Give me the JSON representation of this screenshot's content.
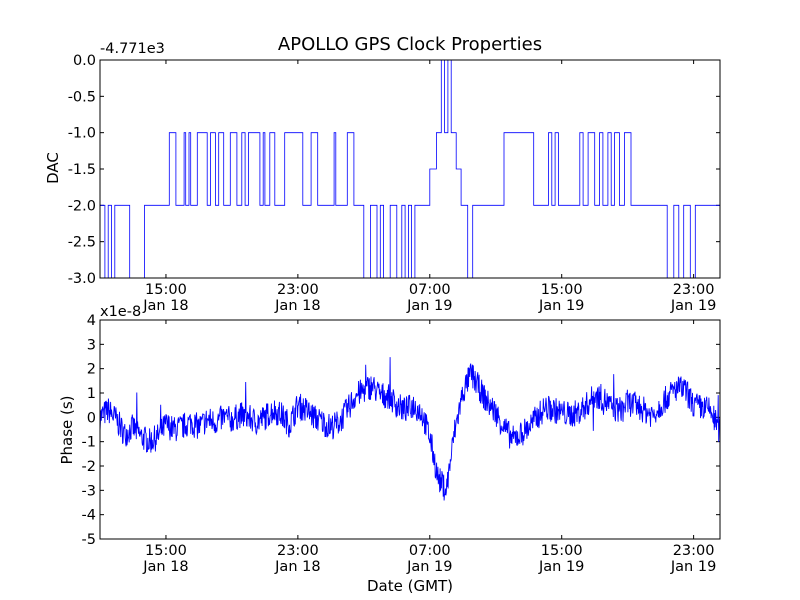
{
  "chart_data": [
    {
      "type": "line",
      "title": "APOLLO GPS Clock Properties",
      "xlabel": "",
      "ylabel": "DAC",
      "offset_text": "-4.771e3",
      "ylim": [
        -3.0,
        0.0
      ],
      "yticks": [
        "0.0",
        "-0.5",
        "-1.0",
        "-1.5",
        "-2.0",
        "-2.5",
        "-3.0"
      ],
      "yticks_values": [
        0.0,
        -0.5,
        -1.0,
        -1.5,
        -2.0,
        -2.5,
        -3.0
      ],
      "xlim_hours": [
        11.0,
        48.6
      ],
      "xticks": [
        {
          "time": "15:00",
          "date": "Jan 18",
          "hour": 15
        },
        {
          "time": "23:00",
          "date": "Jan 18",
          "hour": 23
        },
        {
          "time": "07:00",
          "date": "Jan 19",
          "hour": 31
        },
        {
          "time": "15:00",
          "date": "Jan 19",
          "hour": 39
        },
        {
          "time": "23:00",
          "date": "Jan 19",
          "hour": 47
        }
      ],
      "series": [
        {
          "color": "#0000ff",
          "x_hours": [
            11.0,
            11.3,
            11.5,
            11.7,
            11.9,
            12.5,
            12.8,
            13.7,
            14.0,
            15.0,
            15.2,
            15.5,
            15.6,
            16.1,
            16.2,
            16.4,
            16.5,
            16.7,
            16.9,
            17.3,
            17.5,
            17.7,
            17.9,
            18.0,
            18.2,
            18.5,
            18.9,
            19.3,
            19.6,
            19.8,
            20.0,
            20.5,
            20.7,
            20.9,
            21.0,
            21.3,
            21.6,
            22.0,
            22.2,
            23.0,
            23.3,
            23.8,
            24.2,
            25.0,
            25.2,
            25.3,
            25.6,
            26.0,
            26.4,
            26.7,
            27.0,
            27.4,
            27.8,
            28.0,
            28.2,
            28.6,
            29.0,
            29.3,
            29.5,
            29.7,
            29.9,
            30.1,
            30.5,
            31.0,
            31.4,
            31.7,
            31.9,
            32.1,
            32.3,
            32.5,
            32.6,
            32.9,
            33.3,
            33.6,
            34.2,
            35.0,
            35.5,
            36.2,
            36.9,
            37.3,
            38.0,
            38.2,
            38.4,
            38.6,
            38.8,
            39.2,
            39.5,
            40.1,
            40.3,
            40.6,
            41.0,
            41.3,
            41.5,
            41.8,
            42.0,
            42.2,
            42.5,
            42.8,
            43.2,
            43.6,
            44.0,
            45.0,
            45.4,
            45.8,
            46.1,
            46.4,
            46.8,
            47.1,
            47.5,
            48.2,
            48.6
          ],
          "values": [
            -2.0,
            -3.0,
            -2.0,
            -3.0,
            -2.0,
            -2.0,
            -3.0,
            -2.0,
            -2.0,
            -2.0,
            -1.0,
            -1.0,
            -2.0,
            -1.0,
            -2.0,
            -1.0,
            -2.0,
            -2.0,
            -1.0,
            -1.0,
            -2.0,
            -1.0,
            -1.0,
            -2.0,
            -1.0,
            -2.0,
            -1.0,
            -2.0,
            -1.0,
            -2.0,
            -1.0,
            -1.0,
            -2.0,
            -1.0,
            -2.0,
            -1.0,
            -2.0,
            -2.0,
            -1.0,
            -1.0,
            -2.0,
            -1.0,
            -2.0,
            -2.0,
            -1.0,
            -2.0,
            -2.0,
            -1.0,
            -2.0,
            -2.0,
            -3.0,
            -2.0,
            -3.0,
            -2.0,
            -3.0,
            -2.0,
            -3.0,
            -2.0,
            -3.0,
            -2.0,
            -3.0,
            -2.0,
            -2.0,
            -1.5,
            -1.0,
            0.0,
            -1.0,
            0.0,
            -1.0,
            -1.0,
            -1.5,
            -2.0,
            -3.0,
            -2.0,
            -2.0,
            -2.0,
            -1.0,
            -1.0,
            -1.0,
            -2.0,
            -2.0,
            -1.0,
            -2.0,
            -1.0,
            -2.0,
            -2.0,
            -2.0,
            -1.0,
            -2.0,
            -1.0,
            -2.0,
            -1.0,
            -2.0,
            -1.0,
            -2.0,
            -1.0,
            -2.0,
            -1.0,
            -2.0,
            -2.0,
            -2.0,
            -2.0,
            -3.0,
            -2.0,
            -3.0,
            -2.0,
            -3.0,
            -2.0,
            -2.0,
            -2.0,
            -2.0
          ]
        }
      ]
    },
    {
      "type": "line",
      "title": "",
      "xlabel": "Date (GMT)",
      "ylabel": "Phase (s)",
      "offset_text": "x1e-8",
      "ylim": [
        -5,
        4
      ],
      "yticks": [
        "4",
        "3",
        "2",
        "1",
        "0",
        "-1",
        "-2",
        "-3",
        "-4",
        "-5"
      ],
      "yticks_values": [
        4,
        3,
        2,
        1,
        0,
        -1,
        -2,
        -3,
        -4,
        -5
      ],
      "xlim_hours": [
        11.0,
        48.6
      ],
      "xticks": [
        {
          "time": "15:00",
          "date": "Jan 18",
          "hour": 15
        },
        {
          "time": "23:00",
          "date": "Jan 18",
          "hour": 23
        },
        {
          "time": "07:00",
          "date": "Jan 19",
          "hour": 31
        },
        {
          "time": "15:00",
          "date": "Jan 19",
          "hour": 39
        },
        {
          "time": "23:00",
          "date": "Jan 19",
          "hour": 47
        }
      ],
      "series": [
        {
          "color": "#0000ff",
          "x_hours": [
            11.0,
            11.5,
            12.0,
            12.5,
            13.0,
            13.5,
            14.0,
            14.5,
            15.0,
            15.5,
            16.0,
            16.5,
            17.0,
            17.5,
            18.0,
            18.5,
            19.0,
            19.5,
            20.0,
            20.5,
            21.0,
            21.5,
            22.0,
            22.5,
            23.0,
            23.5,
            24.0,
            24.5,
            25.0,
            25.5,
            26.0,
            26.5,
            27.0,
            27.5,
            28.0,
            28.5,
            29.0,
            29.5,
            30.0,
            30.5,
            31.0,
            31.5,
            32.0,
            32.5,
            33.0,
            33.5,
            34.0,
            34.5,
            35.0,
            35.5,
            36.0,
            36.5,
            37.0,
            37.5,
            38.0,
            38.5,
            39.0,
            39.5,
            40.0,
            40.5,
            41.0,
            41.5,
            42.0,
            42.5,
            43.0,
            43.5,
            44.0,
            44.5,
            45.0,
            45.5,
            46.0,
            46.5,
            47.0,
            47.5,
            48.0,
            48.6
          ],
          "values": [
            0.0,
            0.3,
            -0.1,
            -0.7,
            -0.4,
            -0.8,
            -1.0,
            -0.8,
            -0.3,
            -0.5,
            -0.4,
            -0.2,
            -0.4,
            -0.1,
            -0.2,
            0.0,
            -0.1,
            0.1,
            0.0,
            -0.2,
            0.0,
            0.3,
            0.1,
            -0.3,
            0.5,
            0.3,
            0.0,
            -0.2,
            -0.4,
            -0.2,
            0.3,
            0.9,
            1.1,
            1.3,
            0.9,
            0.9,
            0.5,
            0.3,
            0.5,
            0.2,
            -0.8,
            -2.5,
            -3.0,
            -0.6,
            1.0,
            1.8,
            1.2,
            0.6,
            0.2,
            -0.4,
            -0.9,
            -0.7,
            -0.4,
            0.0,
            0.4,
            0.3,
            0.2,
            0.1,
            0.2,
            0.5,
            0.9,
            0.8,
            0.4,
            0.3,
            0.6,
            0.5,
            0.3,
            0.1,
            0.5,
            0.9,
            1.2,
            1.1,
            0.5,
            0.4,
            0.3,
            -0.6
          ]
        }
      ]
    }
  ]
}
